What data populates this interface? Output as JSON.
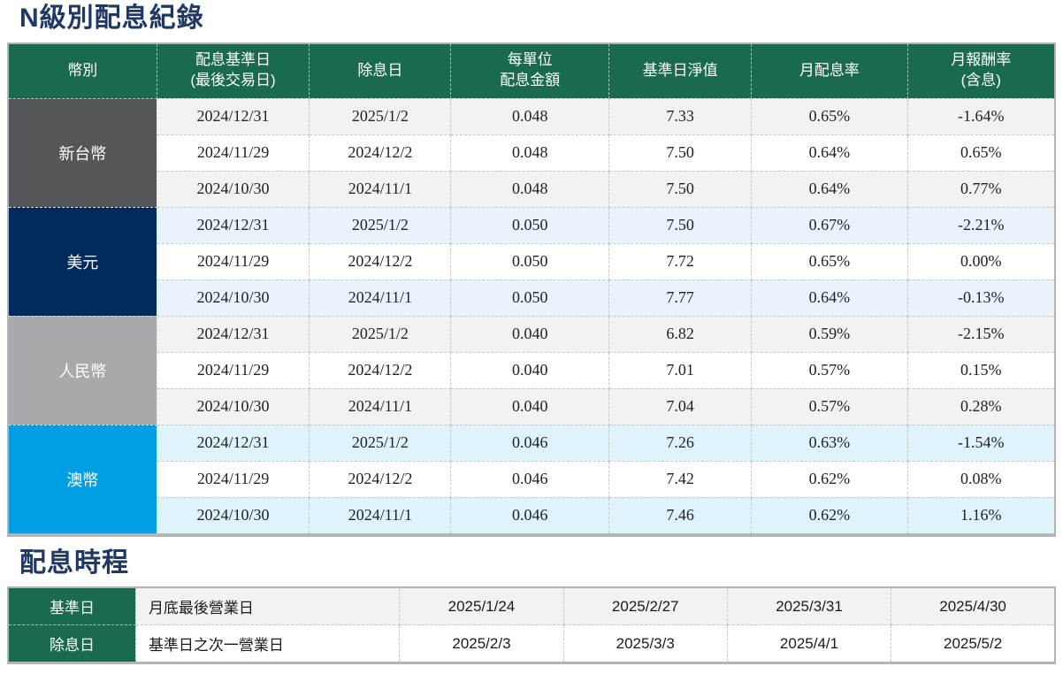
{
  "titles": {
    "dividend_records": "N級別配息紀錄",
    "schedule": "配息時程"
  },
  "colors": {
    "title_navy": "#1F3864",
    "header_green": "#1A6B4D",
    "border_gray": "#B5B5B5",
    "row_gray_tint": "#F2F2F2",
    "row_blue_tint": "#E9F3FB",
    "row_cyan_tint": "#DFF3FC",
    "twd_cell": "#55565A",
    "usd_cell": "#002A5C",
    "cny_cell": "#A7A9AC",
    "aud_cell": "#009FE3"
  },
  "dividend_table": {
    "headers": [
      "幣別",
      "配息基準日\n(最後交易日)",
      "除息日",
      "每單位\n配息金額",
      "基準日淨值",
      "月配息率",
      "月報酬率\n(含息)"
    ],
    "groups": [
      {
        "currency": "新台幣",
        "color": "#55565A",
        "row_tint": "#F2F2F2",
        "rows": [
          [
            "2024/12/31",
            "2025/1/2",
            "0.048",
            "7.33",
            "0.65%",
            "-1.64%"
          ],
          [
            "2024/11/29",
            "2024/12/2",
            "0.048",
            "7.50",
            "0.64%",
            "0.65%"
          ],
          [
            "2024/10/30",
            "2024/11/1",
            "0.048",
            "7.50",
            "0.64%",
            "0.77%"
          ]
        ]
      },
      {
        "currency": "美元",
        "color": "#002A5C",
        "row_tint": "#E9F3FB",
        "rows": [
          [
            "2024/12/31",
            "2025/1/2",
            "0.050",
            "7.50",
            "0.67%",
            "-2.21%"
          ],
          [
            "2024/11/29",
            "2024/12/2",
            "0.050",
            "7.72",
            "0.65%",
            "0.00%"
          ],
          [
            "2024/10/30",
            "2024/11/1",
            "0.050",
            "7.77",
            "0.64%",
            "-0.13%"
          ]
        ]
      },
      {
        "currency": "人民幣",
        "color": "#A7A9AC",
        "row_tint": "#F2F2F2",
        "rows": [
          [
            "2024/12/31",
            "2025/1/2",
            "0.040",
            "6.82",
            "0.59%",
            "-2.15%"
          ],
          [
            "2024/11/29",
            "2024/12/2",
            "0.040",
            "7.01",
            "0.57%",
            "0.15%"
          ],
          [
            "2024/10/30",
            "2024/11/1",
            "0.040",
            "7.04",
            "0.57%",
            "0.28%"
          ]
        ]
      },
      {
        "currency": "澳幣",
        "color": "#009FE3",
        "row_tint": "#DFF3FC",
        "rows": [
          [
            "2024/12/31",
            "2025/1/2",
            "0.046",
            "7.26",
            "0.63%",
            "-1.54%"
          ],
          [
            "2024/11/29",
            "2024/12/2",
            "0.046",
            "7.42",
            "0.62%",
            "0.08%"
          ],
          [
            "2024/10/30",
            "2024/11/1",
            "0.046",
            "7.46",
            "0.62%",
            "1.16%"
          ]
        ]
      }
    ]
  },
  "schedule_table": {
    "rows": [
      {
        "label": "基準日",
        "description": "月底最後營業日",
        "dates": [
          "2025/1/24",
          "2025/2/27",
          "2025/3/31",
          "2025/4/30"
        ],
        "tint": "#F2F2F2"
      },
      {
        "label": "除息日",
        "description": "基準日之次一營業日",
        "dates": [
          "2025/2/3",
          "2025/3/3",
          "2025/4/1",
          "2025/5/2"
        ],
        "tint": "#FFFFFF"
      }
    ]
  }
}
